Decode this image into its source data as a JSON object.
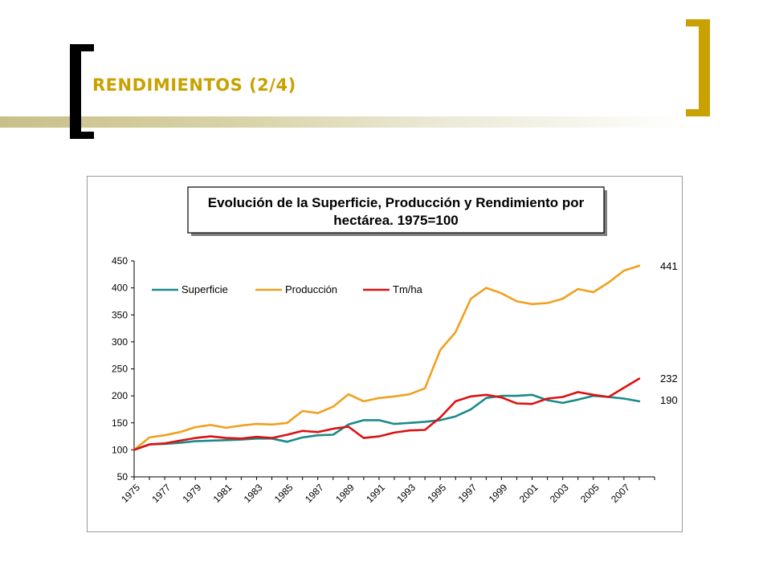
{
  "slide": {
    "title": "RENDIMIENTOS (2/4)",
    "colors": {
      "title": "#c9a100",
      "bracket_left": "#000000",
      "bracket_right": "#c9a100"
    }
  },
  "chart_data": {
    "type": "line",
    "title": "Evolución de la Superficie, Producción y Rendimiento por hectárea. 1975=100",
    "title_lines": [
      "Evolución de la Superficie, Producción y Rendimiento por",
      "hectárea. 1975=100"
    ],
    "xlabel": "",
    "ylabel": "",
    "ylim": [
      50,
      450
    ],
    "yticks": [
      50,
      100,
      150,
      200,
      250,
      300,
      350,
      400,
      450
    ],
    "x": [
      1975,
      1976,
      1977,
      1978,
      1979,
      1980,
      1981,
      1982,
      1983,
      1984,
      1985,
      1986,
      1987,
      1988,
      1989,
      1990,
      1991,
      1992,
      1993,
      1994,
      1995,
      1996,
      1997,
      1998,
      1999,
      2000,
      2001,
      2002,
      2003,
      2004,
      2005,
      2006,
      2007,
      2008
    ],
    "xtick_labels": [
      "1975",
      "1977",
      "1979",
      "1981",
      "1983",
      "1985",
      "1987",
      "1989",
      "1991",
      "1993",
      "1995",
      "1997",
      "1999",
      "2001",
      "2003",
      "2005",
      "2007"
    ],
    "grid": false,
    "legend_position": "top-left",
    "series": [
      {
        "name": "Superficie",
        "color": "#1a8a8a",
        "values": [
          100,
          110,
          111,
          113,
          116,
          117,
          118,
          119,
          121,
          121,
          115,
          123,
          127,
          128,
          147,
          155,
          155,
          148,
          150,
          152,
          155,
          162,
          175,
          196,
          200,
          200,
          202,
          192,
          187,
          193,
          200,
          198,
          195,
          190
        ]
      },
      {
        "name": "Producción",
        "color": "#f0a020",
        "values": [
          100,
          123,
          127,
          133,
          142,
          146,
          141,
          145,
          148,
          147,
          150,
          172,
          168,
          180,
          203,
          190,
          196,
          199,
          203,
          214,
          285,
          318,
          380,
          400,
          390,
          375,
          370,
          372,
          380,
          398,
          392,
          410,
          432,
          441
        ]
      },
      {
        "name": "Tm/ha",
        "color": "#dd1111",
        "values": [
          100,
          110,
          112,
          117,
          122,
          125,
          122,
          121,
          124,
          122,
          128,
          135,
          133,
          139,
          143,
          122,
          125,
          132,
          136,
          137,
          160,
          190,
          199,
          202,
          197,
          186,
          185,
          195,
          198,
          207,
          202,
          198,
          215,
          232
        ]
      }
    ],
    "end_labels": [
      "441",
      "232",
      "190"
    ]
  }
}
